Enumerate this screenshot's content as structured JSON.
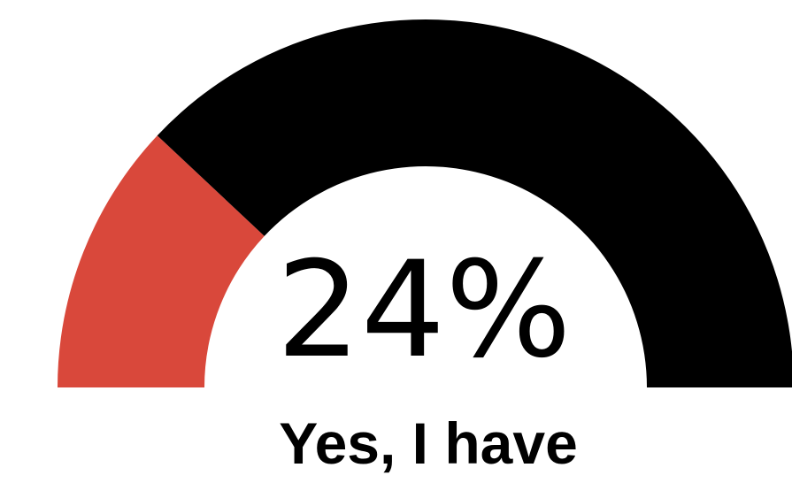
{
  "chart_data": {
    "type": "gauge",
    "value": 24,
    "max": 100,
    "value_text": "24%",
    "label": "Yes, I have",
    "colors": {
      "value": "#d9483b",
      "remainder": "#000000",
      "background": "#ffffff"
    }
  }
}
